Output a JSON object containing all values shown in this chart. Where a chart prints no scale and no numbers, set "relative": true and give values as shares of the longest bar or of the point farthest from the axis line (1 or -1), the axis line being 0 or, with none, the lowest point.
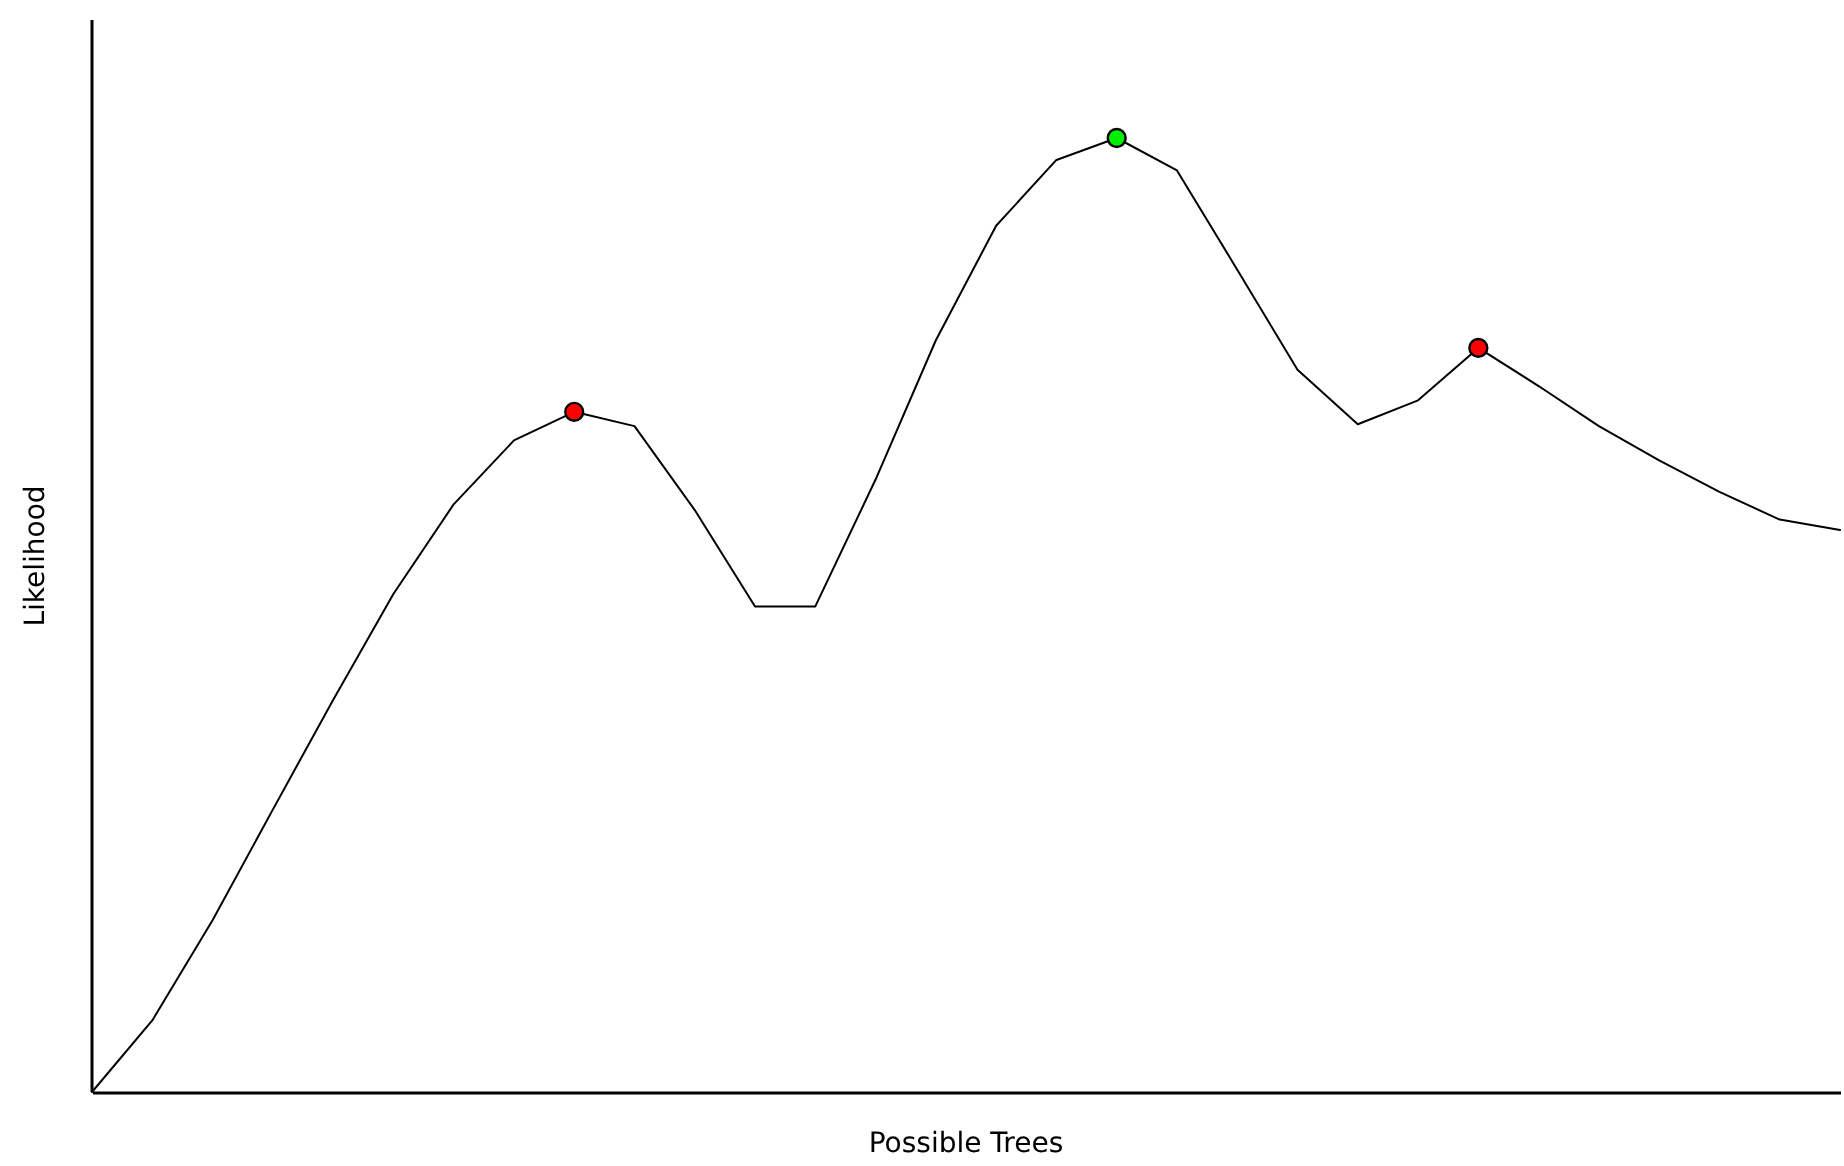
{
  "chart_data": {
    "type": "line",
    "relative": true,
    "xlabel": "Possible Trees",
    "ylabel": "Likelihood",
    "grid": false,
    "tick_labels": false,
    "marker": "none",
    "line_style": "solid",
    "categories": [
      null,
      null,
      null,
      null,
      null,
      null,
      null,
      null,
      null,
      null,
      null,
      null,
      null,
      null,
      null,
      null,
      null,
      null,
      null,
      null,
      null,
      null,
      null,
      null,
      null,
      null,
      null,
      null,
      null,
      null
    ],
    "series": [
      {
        "color": "#000000",
        "values": [
          0,
          0.075,
          0.18,
          0.296,
          0.411,
          0.522,
          0.616,
          0.683,
          0.713,
          0.698,
          0.61,
          0.509,
          0.509,
          0.642,
          0.788,
          0.908,
          0.977,
          1.0,
          0.966,
          0.862,
          0.757,
          0.7,
          0.725,
          0.78,
          0.74,
          0.698,
          0.662,
          0.629,
          0.6,
          0.589
        ]
      }
    ]
  }
}
